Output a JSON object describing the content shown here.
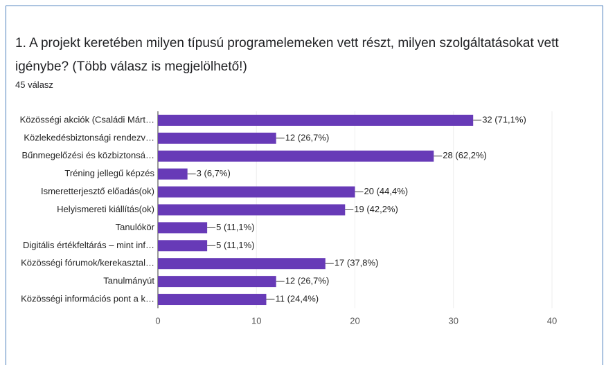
{
  "chart_data": {
    "type": "bar",
    "orientation": "horizontal",
    "title": "1. A projekt keretében milyen típusú programelemeken vett részt, milyen szolgáltatásokat vett igénybe? (Több válasz is megjelölhető!)",
    "subtitle": "45 válasz",
    "categories": [
      "Közösségi akciók (Családi Márt…",
      "Közlekedésbiztonsági rendezv…",
      "Bűnmegelőzési és közbiztonsá…",
      "Tréning jellegű képzés",
      "Ismeretterjesztő előadás(ok)",
      "Helyismereti kiállítás(ok)",
      "Tanulókör",
      "Digitális értékfeltárás – mint inf…",
      "Közösségi fórumok/kerekasztal…",
      "Tanulmányút",
      "Közösségi információs pont a k…"
    ],
    "values": [
      32,
      12,
      28,
      3,
      20,
      19,
      5,
      5,
      17,
      12,
      11
    ],
    "value_labels": [
      "32 (71,1%)",
      "12 (26,7%)",
      "28 (62,2%)",
      "3 (6,7%)",
      "20 (44,4%)",
      "19 (42,2%)",
      "5 (11,1%)",
      "5 (11,1%)",
      "17 (37,8%)",
      "12 (26,7%)",
      "11 (24,4%)"
    ],
    "color": "#673ab7",
    "xlim": [
      0,
      40
    ],
    "xticks": [
      0,
      10,
      20,
      30,
      40
    ],
    "grid": true
  }
}
